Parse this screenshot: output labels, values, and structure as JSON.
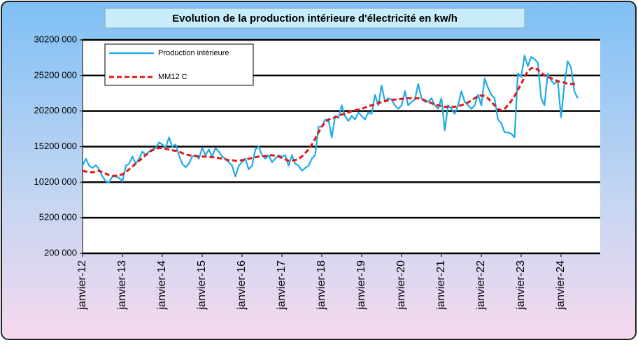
{
  "chart_data": {
    "type": "line",
    "title": "Evolution de la production intérieure d'électricité en kw/h",
    "categories": [
      "janvier-12",
      null,
      null,
      null,
      null,
      null,
      null,
      null,
      null,
      null,
      null,
      null,
      "janvier-13",
      null,
      null,
      null,
      null,
      null,
      null,
      null,
      null,
      null,
      null,
      null,
      "janvier-14",
      null,
      null,
      null,
      null,
      null,
      null,
      null,
      null,
      null,
      null,
      null,
      "janvier-15",
      null,
      null,
      null,
      null,
      null,
      null,
      null,
      null,
      null,
      null,
      null,
      "janvier-16",
      null,
      null,
      null,
      null,
      null,
      null,
      null,
      null,
      null,
      null,
      null,
      "janvier-17",
      null,
      null,
      null,
      null,
      null,
      null,
      null,
      null,
      null,
      null,
      null,
      "janvier-18",
      null,
      null,
      null,
      null,
      null,
      null,
      null,
      null,
      null,
      null,
      null,
      "janvier-19",
      null,
      null,
      null,
      null,
      null,
      null,
      null,
      null,
      null,
      null,
      null,
      "janvier-20",
      null,
      null,
      null,
      null,
      null,
      null,
      null,
      null,
      null,
      null,
      null,
      "janvier-21",
      null,
      null,
      null,
      null,
      null,
      null,
      null,
      null,
      null,
      null,
      null,
      "janvier-22",
      null,
      null,
      null,
      null,
      null,
      null,
      null,
      null,
      null,
      null,
      null,
      "janvier-23",
      null,
      null,
      null,
      null,
      null,
      null,
      null,
      null,
      null,
      null,
      null,
      "janvier-24",
      null,
      null,
      null,
      null,
      null
    ],
    "series": [
      {
        "name": "Production intérieure",
        "color": "#1faae6",
        "dash": false,
        "values": [
          12500000,
          13500000,
          12500000,
          12200000,
          12600000,
          12000000,
          11000000,
          10300000,
          10200000,
          11000000,
          11000000,
          10800000,
          10300000,
          12500000,
          12800000,
          13800000,
          12800000,
          13500000,
          14500000,
          14000000,
          14500000,
          14800000,
          15000000,
          15800000,
          15500000,
          15000000,
          16500000,
          15200000,
          15500000,
          14000000,
          12800000,
          12300000,
          12800000,
          13800000,
          14000000,
          13500000,
          15000000,
          14000000,
          14800000,
          13800000,
          15000000,
          14500000,
          13800000,
          13500000,
          13000000,
          12500000,
          11000000,
          12500000,
          13000000,
          13500000,
          12000000,
          12500000,
          14800000,
          15200000,
          14000000,
          13500000,
          14000000,
          13000000,
          13500000,
          14000000,
          13800000,
          14000000,
          12500000,
          14000000,
          12800000,
          12500000,
          11800000,
          12200000,
          12500000,
          13500000,
          14000000,
          18000000,
          18000000,
          19000000,
          19000000,
          16500000,
          19500000,
          19200000,
          21000000,
          19500000,
          18800000,
          19500000,
          19000000,
          20000000,
          19500000,
          19000000,
          20000000,
          19800000,
          22500000,
          21000000,
          23800000,
          21500000,
          22000000,
          21800000,
          21000000,
          20500000,
          21000000,
          23000000,
          21000000,
          21500000,
          21800000,
          24000000,
          22000000,
          21500000,
          21500000,
          22000000,
          21000000,
          20500000,
          22000000,
          17500000,
          21000000,
          20500000,
          19800000,
          21000000,
          23000000,
          21500000,
          21000000,
          20500000,
          21000000,
          22500000,
          21000000,
          24800000,
          23500000,
          22500000,
          22000000,
          19000000,
          18500000,
          17200000,
          17200000,
          17000000,
          16500000,
          25500000,
          25000000,
          28000000,
          26500000,
          27800000,
          27500000,
          27000000,
          22000000,
          21000000,
          25500000,
          24500000,
          24000000,
          24500000,
          19300000,
          24000000,
          27200000,
          26300000,
          23000000,
          22000000
        ]
      },
      {
        "name": "MM12 C",
        "color": "#e01818",
        "dash": true,
        "values": [
          11800000,
          11700000,
          11600000,
          11600000,
          11700000,
          11800000,
          11600000,
          11400000,
          11200000,
          11100000,
          11100000,
          11200000,
          11300000,
          11600000,
          12000000,
          12400000,
          12800000,
          13200000,
          13600000,
          14000000,
          14400000,
          14700000,
          14900000,
          15000000,
          15000000,
          14900000,
          14800000,
          14700000,
          14600000,
          14500000,
          14300000,
          14100000,
          14000000,
          13900000,
          13900000,
          13800000,
          13800000,
          13800000,
          13800000,
          13700000,
          13700000,
          13600000,
          13500000,
          13400000,
          13300000,
          13300000,
          13200000,
          13200000,
          13300000,
          13400000,
          13500000,
          13600000,
          13700000,
          13800000,
          13800000,
          13900000,
          13900000,
          14000000,
          13900000,
          13800000,
          13600000,
          13400000,
          13200000,
          13200000,
          13300000,
          13500000,
          13800000,
          14300000,
          14800000,
          15500000,
          16300000,
          17200000,
          18000000,
          18600000,
          19000000,
          19200000,
          19300000,
          19500000,
          19700000,
          19800000,
          20000000,
          20200000,
          20300000,
          20400000,
          20500000,
          20700000,
          20900000,
          21000000,
          21100000,
          21300000,
          21500000,
          21600000,
          21700000,
          21800000,
          21800000,
          21900000,
          21900000,
          22000000,
          22000000,
          22000000,
          22000000,
          22000000,
          21900000,
          21700000,
          21500000,
          21300000,
          21100000,
          21000000,
          20900000,
          20800000,
          20800000,
          20800000,
          20800000,
          20900000,
          21000000,
          21200000,
          21400000,
          21700000,
          22000000,
          22300000,
          22400000,
          22300000,
          22000000,
          21500000,
          21000000,
          20500000,
          20300000,
          20500000,
          21000000,
          21600000,
          22300000,
          23200000,
          24000000,
          25000000,
          25800000,
          26200000,
          26300000,
          26000000,
          25600000,
          25200000,
          25000000,
          24800000,
          24600000,
          24400000,
          24300000,
          24200000,
          24000000,
          24000000,
          24000000,
          24000000
        ]
      }
    ],
    "ylim": [
      200000,
      30200000
    ],
    "yticks": [
      {
        "value": 200000,
        "label": "200 000"
      },
      {
        "value": 5200000,
        "label": "5200 000"
      },
      {
        "value": 10200000,
        "label": "10200 000"
      },
      {
        "value": 15200000,
        "label": "15200 000"
      },
      {
        "value": 20200000,
        "label": "20200 000"
      },
      {
        "value": 25200000,
        "label": "25200 000"
      },
      {
        "value": 30200000,
        "label": "30200 000"
      }
    ],
    "grid": true,
    "legend": "top-left"
  }
}
